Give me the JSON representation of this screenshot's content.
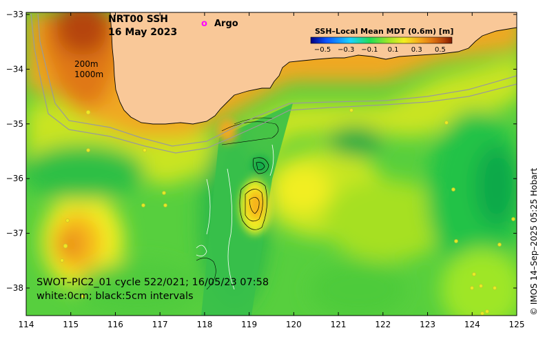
{
  "title": {
    "product": "NRT00 SSH",
    "date": "16 May 2023"
  },
  "legend": {
    "argo_symbol": "o",
    "argo_label": "Argo"
  },
  "isobaths": {
    "shallow": "200m",
    "deep": "1000m"
  },
  "colorbar": {
    "title": "SSH–Local Mean MDT (0.6m) [m]",
    "ticks": [
      "−0.5",
      "−0.3",
      "−0.1",
      "0.1",
      "0.3",
      "0.5"
    ],
    "tick_values": [
      -0.5,
      -0.3,
      -0.1,
      0.1,
      0.3,
      0.5
    ],
    "range": [
      -0.6,
      0.6
    ]
  },
  "axes": {
    "x_ticks": [
      "114",
      "115",
      "116",
      "117",
      "118",
      "119",
      "120",
      "121",
      "122",
      "123",
      "124",
      "125"
    ],
    "y_ticks": [
      "−33",
      "−34",
      "−35",
      "−36",
      "−37",
      "−38"
    ]
  },
  "annotation": {
    "swot_line1": "SWOT–PIC2_01 cycle 522/021; 16/05/23 07:58",
    "swot_line2": "white:0cm; black:5cm intervals"
  },
  "credit": "© IMOS 14–Sep–2025 05:25 Hobart",
  "colors": {
    "land": "#f9c898",
    "argo": "#ff00ff",
    "colormap": [
      "#00007f",
      "#0a52ff",
      "#19d3ff",
      "#22dd55",
      "#9fe628",
      "#f2ee22",
      "#f6b01c",
      "#e07712",
      "#b5440a",
      "#7f1a00"
    ]
  }
}
